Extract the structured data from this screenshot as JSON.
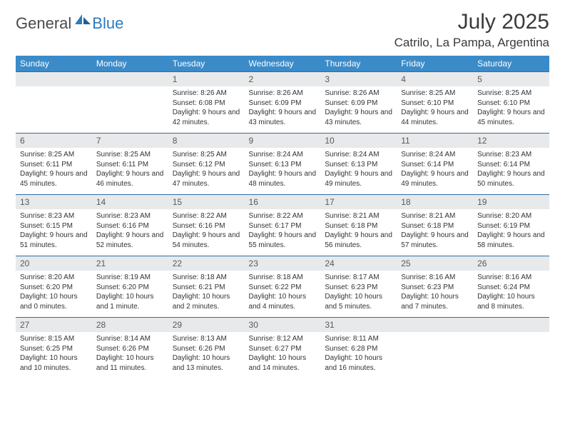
{
  "brand": {
    "part1": "General",
    "part2": "Blue"
  },
  "title": "July 2025",
  "location": "Catrilo, La Pampa, Argentina",
  "colors": {
    "header_bg": "#3b8bc9",
    "header_text": "#ffffff",
    "daynum_bg": "#e7e9ea",
    "row_border": "#2f6ea3",
    "body_text": "#333333",
    "logo_gray": "#4a4a4a",
    "logo_blue": "#2b7bbd"
  },
  "weekdays": [
    "Sunday",
    "Monday",
    "Tuesday",
    "Wednesday",
    "Thursday",
    "Friday",
    "Saturday"
  ],
  "weeks": [
    [
      {
        "n": "",
        "lines": []
      },
      {
        "n": "",
        "lines": []
      },
      {
        "n": "1",
        "lines": [
          "Sunrise: 8:26 AM",
          "Sunset: 6:08 PM",
          "Daylight: 9 hours and 42 minutes."
        ]
      },
      {
        "n": "2",
        "lines": [
          "Sunrise: 8:26 AM",
          "Sunset: 6:09 PM",
          "Daylight: 9 hours and 43 minutes."
        ]
      },
      {
        "n": "3",
        "lines": [
          "Sunrise: 8:26 AM",
          "Sunset: 6:09 PM",
          "Daylight: 9 hours and 43 minutes."
        ]
      },
      {
        "n": "4",
        "lines": [
          "Sunrise: 8:25 AM",
          "Sunset: 6:10 PM",
          "Daylight: 9 hours and 44 minutes."
        ]
      },
      {
        "n": "5",
        "lines": [
          "Sunrise: 8:25 AM",
          "Sunset: 6:10 PM",
          "Daylight: 9 hours and 45 minutes."
        ]
      }
    ],
    [
      {
        "n": "6",
        "lines": [
          "Sunrise: 8:25 AM",
          "Sunset: 6:11 PM",
          "Daylight: 9 hours and 45 minutes."
        ]
      },
      {
        "n": "7",
        "lines": [
          "Sunrise: 8:25 AM",
          "Sunset: 6:11 PM",
          "Daylight: 9 hours and 46 minutes."
        ]
      },
      {
        "n": "8",
        "lines": [
          "Sunrise: 8:25 AM",
          "Sunset: 6:12 PM",
          "Daylight: 9 hours and 47 minutes."
        ]
      },
      {
        "n": "9",
        "lines": [
          "Sunrise: 8:24 AM",
          "Sunset: 6:13 PM",
          "Daylight: 9 hours and 48 minutes."
        ]
      },
      {
        "n": "10",
        "lines": [
          "Sunrise: 8:24 AM",
          "Sunset: 6:13 PM",
          "Daylight: 9 hours and 49 minutes."
        ]
      },
      {
        "n": "11",
        "lines": [
          "Sunrise: 8:24 AM",
          "Sunset: 6:14 PM",
          "Daylight: 9 hours and 49 minutes."
        ]
      },
      {
        "n": "12",
        "lines": [
          "Sunrise: 8:23 AM",
          "Sunset: 6:14 PM",
          "Daylight: 9 hours and 50 minutes."
        ]
      }
    ],
    [
      {
        "n": "13",
        "lines": [
          "Sunrise: 8:23 AM",
          "Sunset: 6:15 PM",
          "Daylight: 9 hours and 51 minutes."
        ]
      },
      {
        "n": "14",
        "lines": [
          "Sunrise: 8:23 AM",
          "Sunset: 6:16 PM",
          "Daylight: 9 hours and 52 minutes."
        ]
      },
      {
        "n": "15",
        "lines": [
          "Sunrise: 8:22 AM",
          "Sunset: 6:16 PM",
          "Daylight: 9 hours and 54 minutes."
        ]
      },
      {
        "n": "16",
        "lines": [
          "Sunrise: 8:22 AM",
          "Sunset: 6:17 PM",
          "Daylight: 9 hours and 55 minutes."
        ]
      },
      {
        "n": "17",
        "lines": [
          "Sunrise: 8:21 AM",
          "Sunset: 6:18 PM",
          "Daylight: 9 hours and 56 minutes."
        ]
      },
      {
        "n": "18",
        "lines": [
          "Sunrise: 8:21 AM",
          "Sunset: 6:18 PM",
          "Daylight: 9 hours and 57 minutes."
        ]
      },
      {
        "n": "19",
        "lines": [
          "Sunrise: 8:20 AM",
          "Sunset: 6:19 PM",
          "Daylight: 9 hours and 58 minutes."
        ]
      }
    ],
    [
      {
        "n": "20",
        "lines": [
          "Sunrise: 8:20 AM",
          "Sunset: 6:20 PM",
          "Daylight: 10 hours and 0 minutes."
        ]
      },
      {
        "n": "21",
        "lines": [
          "Sunrise: 8:19 AM",
          "Sunset: 6:20 PM",
          "Daylight: 10 hours and 1 minute."
        ]
      },
      {
        "n": "22",
        "lines": [
          "Sunrise: 8:18 AM",
          "Sunset: 6:21 PM",
          "Daylight: 10 hours and 2 minutes."
        ]
      },
      {
        "n": "23",
        "lines": [
          "Sunrise: 8:18 AM",
          "Sunset: 6:22 PM",
          "Daylight: 10 hours and 4 minutes."
        ]
      },
      {
        "n": "24",
        "lines": [
          "Sunrise: 8:17 AM",
          "Sunset: 6:23 PM",
          "Daylight: 10 hours and 5 minutes."
        ]
      },
      {
        "n": "25",
        "lines": [
          "Sunrise: 8:16 AM",
          "Sunset: 6:23 PM",
          "Daylight: 10 hours and 7 minutes."
        ]
      },
      {
        "n": "26",
        "lines": [
          "Sunrise: 8:16 AM",
          "Sunset: 6:24 PM",
          "Daylight: 10 hours and 8 minutes."
        ]
      }
    ],
    [
      {
        "n": "27",
        "lines": [
          "Sunrise: 8:15 AM",
          "Sunset: 6:25 PM",
          "Daylight: 10 hours and 10 minutes."
        ]
      },
      {
        "n": "28",
        "lines": [
          "Sunrise: 8:14 AM",
          "Sunset: 6:26 PM",
          "Daylight: 10 hours and 11 minutes."
        ]
      },
      {
        "n": "29",
        "lines": [
          "Sunrise: 8:13 AM",
          "Sunset: 6:26 PM",
          "Daylight: 10 hours and 13 minutes."
        ]
      },
      {
        "n": "30",
        "lines": [
          "Sunrise: 8:12 AM",
          "Sunset: 6:27 PM",
          "Daylight: 10 hours and 14 minutes."
        ]
      },
      {
        "n": "31",
        "lines": [
          "Sunrise: 8:11 AM",
          "Sunset: 6:28 PM",
          "Daylight: 10 hours and 16 minutes."
        ]
      },
      {
        "n": "",
        "lines": []
      },
      {
        "n": "",
        "lines": []
      }
    ]
  ]
}
